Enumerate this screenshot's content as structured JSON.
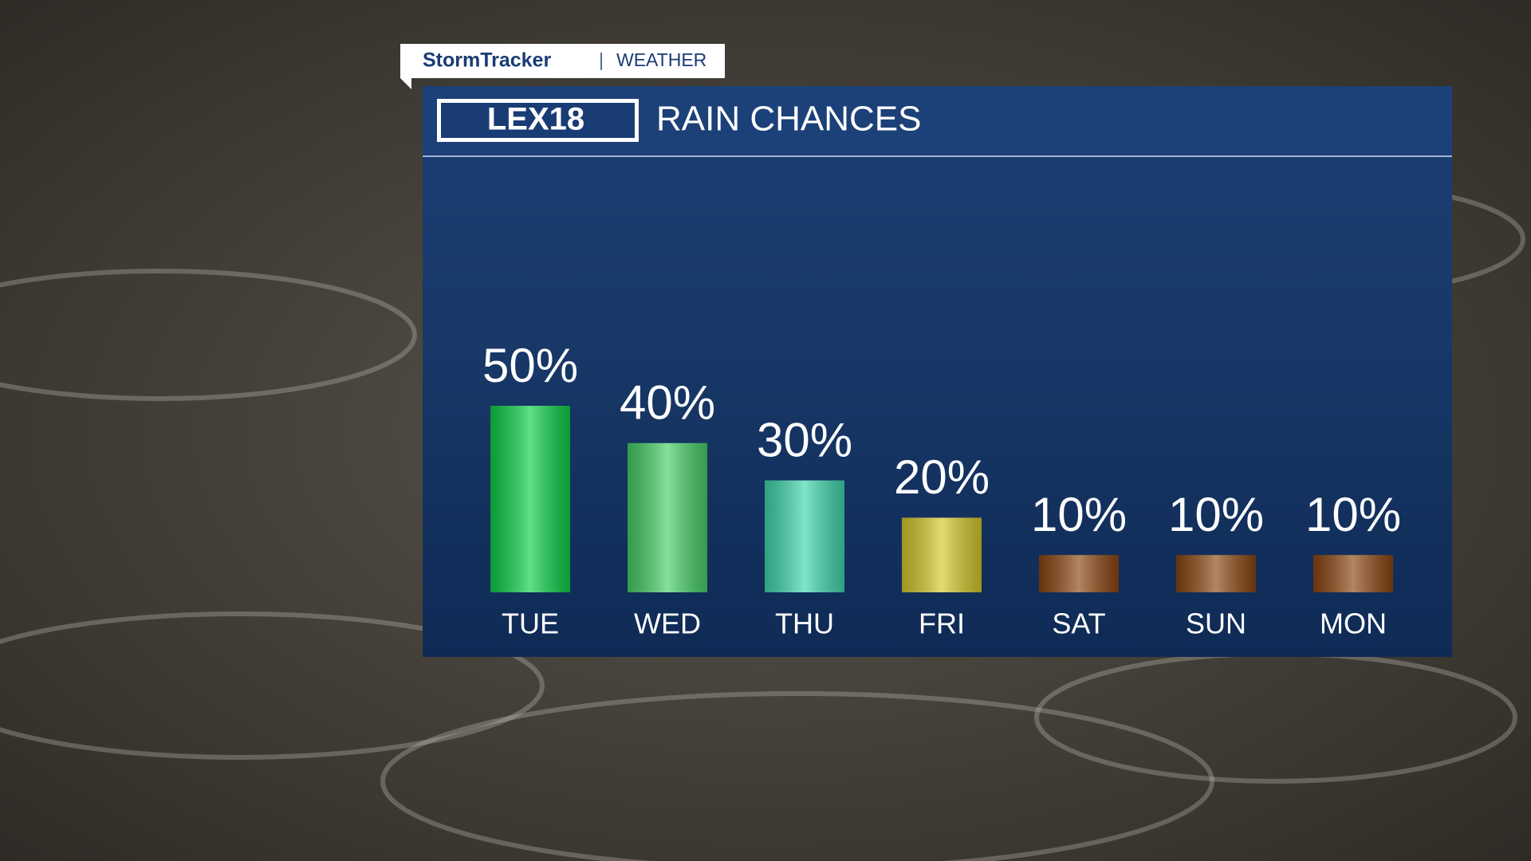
{
  "header": {
    "brand": "StormTracker",
    "section": "WEATHER",
    "logo": "LEX18"
  },
  "chart_data": {
    "type": "bar",
    "title": "RAIN CHANCES",
    "categories": [
      "TUE",
      "WED",
      "THU",
      "FRI",
      "SAT",
      "SUN",
      "MON"
    ],
    "values": [
      50,
      40,
      30,
      20,
      10,
      10,
      10
    ],
    "value_labels": [
      "50%",
      "40%",
      "30%",
      "20%",
      "10%",
      "10%",
      "10%"
    ],
    "colors": [
      "#0ccf48",
      "#45cf66",
      "#3fd6ae",
      "#d2c92a",
      "#8a4510",
      "#8a4510",
      "#8a4510"
    ]
  }
}
